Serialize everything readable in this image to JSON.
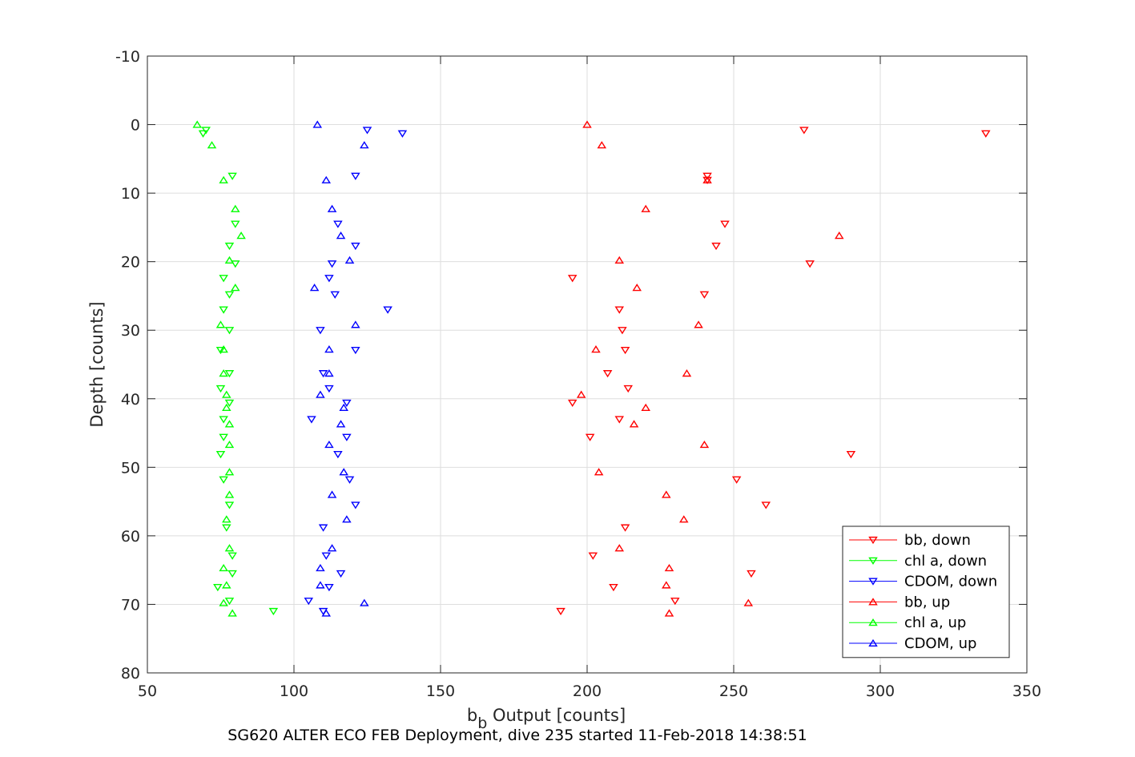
{
  "chart_data": {
    "type": "scatter",
    "xlabel_main": "b",
    "xlabel_sub": "b",
    "xlabel_rest": " Output [counts]",
    "ylabel": "Depth [counts]",
    "caption": "SG620 ALTER ECO FEB Deployment, dive 235 started 11-Feb-2018 14:38:51",
    "xlim": [
      50,
      350
    ],
    "ylim": [
      -10,
      80
    ],
    "y_reversed": true,
    "grid": true,
    "legend_position": "bottom-right",
    "xticks": [
      "50",
      "100",
      "150",
      "200",
      "250",
      "300",
      "350"
    ],
    "yticks": [
      "-10",
      "0",
      "10",
      "20",
      "30",
      "40",
      "50",
      "60",
      "70",
      "80"
    ],
    "series": [
      {
        "name": "bb, down",
        "color": "#ff0000",
        "marker": "triangle-down",
        "points": [
          [
            274,
            0.8
          ],
          [
            336,
            1.3
          ],
          [
            241,
            7.5
          ],
          [
            241,
            8.1
          ],
          [
            247,
            14.5
          ],
          [
            244,
            17.7
          ],
          [
            276,
            20.3
          ],
          [
            195,
            22.4
          ],
          [
            240,
            24.8
          ],
          [
            211,
            27.0
          ],
          [
            212,
            30.0
          ],
          [
            213,
            32.9
          ],
          [
            207,
            36.3
          ],
          [
            214,
            38.5
          ],
          [
            195,
            40.6
          ],
          [
            211,
            43.0
          ],
          [
            201,
            45.6
          ],
          [
            290,
            48.1
          ],
          [
            251,
            51.8
          ],
          [
            261,
            55.5
          ],
          [
            213,
            58.8
          ],
          [
            202,
            62.9
          ],
          [
            256,
            65.5
          ],
          [
            209,
            67.5
          ],
          [
            230,
            69.5
          ],
          [
            191,
            71.0
          ]
        ]
      },
      {
        "name": "chl a, down",
        "color": "#00ff00",
        "marker": "triangle-down",
        "points": [
          [
            70,
            0.8
          ],
          [
            69,
            1.3
          ],
          [
            79,
            7.5
          ],
          [
            80,
            14.5
          ],
          [
            78,
            17.7
          ],
          [
            80,
            20.3
          ],
          [
            76,
            22.4
          ],
          [
            78,
            24.8
          ],
          [
            76,
            27.0
          ],
          [
            78,
            30.0
          ],
          [
            75,
            32.9
          ],
          [
            78,
            36.3
          ],
          [
            75,
            38.5
          ],
          [
            78,
            40.6
          ],
          [
            76,
            43.0
          ],
          [
            76,
            45.6
          ],
          [
            75,
            48.1
          ],
          [
            76,
            51.8
          ],
          [
            78,
            55.5
          ],
          [
            77,
            58.8
          ],
          [
            79,
            62.9
          ],
          [
            79,
            65.5
          ],
          [
            74,
            67.5
          ],
          [
            78,
            69.5
          ],
          [
            93,
            71.0
          ]
        ]
      },
      {
        "name": "CDOM, down",
        "color": "#0000ff",
        "marker": "triangle-down",
        "points": [
          [
            125,
            0.8
          ],
          [
            137,
            1.3
          ],
          [
            121,
            7.5
          ],
          [
            115,
            14.5
          ],
          [
            121,
            17.7
          ],
          [
            113,
            20.3
          ],
          [
            112,
            22.4
          ],
          [
            114,
            24.8
          ],
          [
            132,
            27.0
          ],
          [
            109,
            30.0
          ],
          [
            121,
            32.9
          ],
          [
            110,
            36.3
          ],
          [
            112,
            38.5
          ],
          [
            118,
            40.6
          ],
          [
            106,
            43.0
          ],
          [
            118,
            45.6
          ],
          [
            115,
            48.1
          ],
          [
            119,
            51.8
          ],
          [
            121,
            55.5
          ],
          [
            110,
            58.8
          ],
          [
            111,
            62.9
          ],
          [
            116,
            65.5
          ],
          [
            112,
            67.5
          ],
          [
            105,
            69.5
          ],
          [
            110,
            71.0
          ]
        ]
      },
      {
        "name": "bb, up",
        "color": "#ff0000",
        "marker": "triangle-up",
        "points": [
          [
            200,
            0.0
          ],
          [
            205,
            3.0
          ],
          [
            241,
            8.1
          ],
          [
            220,
            12.3
          ],
          [
            286,
            16.2
          ],
          [
            211,
            19.8
          ],
          [
            217,
            23.8
          ],
          [
            238,
            29.2
          ],
          [
            203,
            32.8
          ],
          [
            234,
            36.3
          ],
          [
            198,
            39.4
          ],
          [
            220,
            41.3
          ],
          [
            216,
            43.7
          ],
          [
            240,
            46.7
          ],
          [
            204,
            50.7
          ],
          [
            227,
            54.0
          ],
          [
            233,
            57.6
          ],
          [
            211,
            61.8
          ],
          [
            228,
            64.7
          ],
          [
            227,
            67.2
          ],
          [
            255,
            69.8
          ],
          [
            228,
            71.3
          ]
        ]
      },
      {
        "name": "chl a, up",
        "color": "#00ff00",
        "marker": "triangle-up",
        "points": [
          [
            67,
            0.0
          ],
          [
            72,
            3.0
          ],
          [
            76,
            8.1
          ],
          [
            80,
            12.3
          ],
          [
            82,
            16.2
          ],
          [
            78,
            19.8
          ],
          [
            80,
            23.8
          ],
          [
            75,
            29.2
          ],
          [
            76,
            32.8
          ],
          [
            76,
            36.3
          ],
          [
            77,
            39.4
          ],
          [
            77,
            41.3
          ],
          [
            78,
            43.7
          ],
          [
            78,
            46.7
          ],
          [
            78,
            50.7
          ],
          [
            78,
            54.0
          ],
          [
            77,
            57.6
          ],
          [
            78,
            61.8
          ],
          [
            76,
            64.7
          ],
          [
            77,
            67.2
          ],
          [
            76,
            69.8
          ],
          [
            79,
            71.3
          ]
        ]
      },
      {
        "name": "CDOM, up",
        "color": "#0000ff",
        "marker": "triangle-up",
        "points": [
          [
            108,
            0.0
          ],
          [
            124,
            3.0
          ],
          [
            111,
            8.1
          ],
          [
            113,
            12.3
          ],
          [
            116,
            16.2
          ],
          [
            119,
            19.8
          ],
          [
            107,
            23.8
          ],
          [
            121,
            29.2
          ],
          [
            112,
            32.8
          ],
          [
            112,
            36.3
          ],
          [
            109,
            39.4
          ],
          [
            117,
            41.3
          ],
          [
            116,
            43.7
          ],
          [
            112,
            46.7
          ],
          [
            117,
            50.7
          ],
          [
            113,
            54.0
          ],
          [
            118,
            57.6
          ],
          [
            113,
            61.8
          ],
          [
            109,
            64.7
          ],
          [
            109,
            67.2
          ],
          [
            124,
            69.8
          ],
          [
            111,
            71.3
          ]
        ]
      }
    ]
  }
}
